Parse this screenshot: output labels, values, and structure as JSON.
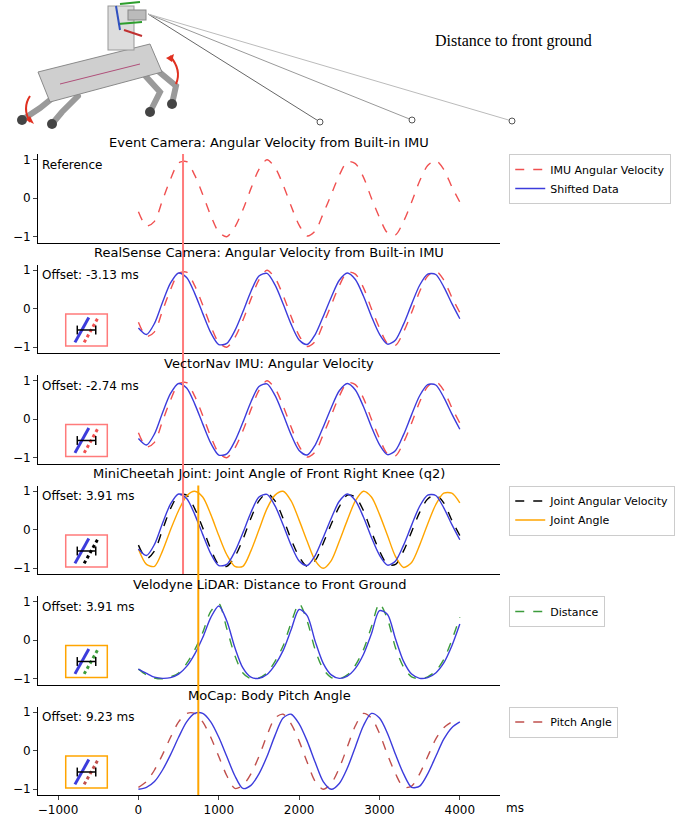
{
  "figure_label": "Distance to front ground",
  "vertical_lines": [
    {
      "x": 555,
      "color": "#ff7b7b",
      "panels": [
        0,
        1,
        2,
        3
      ]
    },
    {
      "x": 745,
      "color": "#ffa500",
      "panels": [
        3,
        4,
        5
      ]
    }
  ],
  "chart_data": [
    {
      "type": "line",
      "title": "Event Camera: Angular Velocity from Built-in IMU",
      "annotation": "Reference",
      "legend": "right",
      "tick_labels": "y",
      "xlim": [
        -1250,
        4500
      ],
      "ylim": [
        -1.15,
        1.15
      ],
      "yticks": [
        {
          "value": -1,
          "label": "−1"
        },
        0,
        1
      ],
      "x": [
        0,
        100,
        200,
        300,
        400,
        500,
        600,
        700,
        800,
        900,
        1000,
        1100,
        1200,
        1300,
        1400,
        1500,
        1600,
        1700,
        1800,
        1900,
        2000,
        2100,
        2200,
        2300,
        2400,
        2500,
        2600,
        2700,
        2800,
        2900,
        3000,
        3100,
        3200,
        3300,
        3400,
        3500,
        3600,
        3700,
        3800,
        3900,
        4000
      ],
      "series": [
        {
          "name": "IMU Angular Velocity",
          "color": "#f05050",
          "line_style": "dashed",
          "values": [
            -0.35,
            -0.72,
            -0.6,
            -0.05,
            0.5,
            0.92,
            0.95,
            0.6,
            0.1,
            -0.45,
            -0.88,
            -1.0,
            -0.75,
            -0.3,
            0.25,
            0.75,
            1.0,
            0.8,
            0.35,
            -0.2,
            -0.7,
            -0.98,
            -0.85,
            -0.4,
            0.1,
            0.6,
            0.95,
            0.9,
            0.55,
            0.0,
            -0.5,
            -0.9,
            -0.95,
            -0.6,
            -0.1,
            0.45,
            0.85,
            0.98,
            0.75,
            0.3,
            -0.1
          ]
        },
        {
          "name": "Shifted Data",
          "color": "#3c3cdc",
          "line_style": "solid",
          "values": [
            null,
            null,
            null,
            null,
            null,
            null,
            null,
            null,
            null,
            null,
            null,
            null,
            null,
            null,
            null,
            null,
            null,
            null,
            null,
            null,
            null,
            null,
            null,
            null,
            null,
            null,
            null,
            null,
            null,
            null,
            null,
            null,
            null,
            null,
            null,
            null,
            null,
            null,
            null,
            null,
            null
          ]
        }
      ]
    },
    {
      "type": "line",
      "title": "RealSense Camera: Angular Velocity from Built-in IMU",
      "annotation": "Offset: -3.13 ms",
      "tick_labels": "y",
      "xlim": [
        -1250,
        4500
      ],
      "ylim": [
        -1.15,
        1.15
      ],
      "yticks": [
        {
          "value": -1,
          "label": "−1"
        },
        0,
        1
      ],
      "x": [
        0,
        100,
        200,
        300,
        400,
        500,
        600,
        700,
        800,
        900,
        1000,
        1100,
        1200,
        1300,
        1400,
        1500,
        1600,
        1700,
        1800,
        1900,
        2000,
        2100,
        2200,
        2300,
        2400,
        2500,
        2600,
        2700,
        2800,
        2900,
        3000,
        3100,
        3200,
        3300,
        3400,
        3500,
        3600,
        3700,
        3800,
        3900,
        4000
      ],
      "series": [
        {
          "color": "#f05050",
          "line_style": "dashed",
          "values": [
            -0.35,
            -0.72,
            -0.6,
            -0.05,
            0.5,
            0.92,
            0.95,
            0.6,
            0.1,
            -0.45,
            -0.88,
            -1.0,
            -0.75,
            -0.3,
            0.25,
            0.75,
            1.0,
            0.8,
            0.35,
            -0.2,
            -0.7,
            -0.98,
            -0.85,
            -0.4,
            0.1,
            0.6,
            0.95,
            0.9,
            0.55,
            0.0,
            -0.5,
            -0.9,
            -0.95,
            -0.6,
            -0.1,
            0.45,
            0.85,
            0.98,
            0.75,
            0.3,
            -0.1
          ]
        },
        {
          "color": "#3c3cdc",
          "line_style": "solid",
          "values": [
            -0.5,
            -0.67,
            -0.38,
            0.17,
            0.67,
            0.93,
            0.81,
            0.4,
            -0.12,
            -0.62,
            -0.93,
            -0.9,
            -0.57,
            -0.08,
            0.45,
            0.85,
            0.92,
            0.62,
            0.13,
            -0.4,
            -0.81,
            -0.93,
            -0.67,
            -0.2,
            0.3,
            0.74,
            0.93,
            0.76,
            0.33,
            -0.2,
            -0.66,
            -0.92,
            -0.81,
            -0.4,
            0.12,
            0.61,
            0.9,
            0.89,
            0.57,
            0.14,
            -0.26
          ]
        }
      ]
    },
    {
      "type": "line",
      "title": "VectorNav IMU: Angular Velocity",
      "annotation": "Offset: -2.74 ms",
      "tick_labels": "y",
      "xlim": [
        -1250,
        4500
      ],
      "ylim": [
        -1.15,
        1.15
      ],
      "yticks": [
        {
          "value": -1,
          "label": "−1"
        },
        0,
        1
      ],
      "x": [
        0,
        100,
        200,
        300,
        400,
        500,
        600,
        700,
        800,
        900,
        1000,
        1100,
        1200,
        1300,
        1400,
        1500,
        1600,
        1700,
        1800,
        1900,
        2000,
        2100,
        2200,
        2300,
        2400,
        2500,
        2600,
        2700,
        2800,
        2900,
        3000,
        3100,
        3200,
        3300,
        3400,
        3500,
        3600,
        3700,
        3800,
        3900,
        4000
      ],
      "series": [
        {
          "color": "#f05050",
          "line_style": "dashed",
          "values": [
            -0.35,
            -0.72,
            -0.6,
            -0.05,
            0.5,
            0.92,
            0.95,
            0.6,
            0.1,
            -0.45,
            -0.88,
            -1.0,
            -0.75,
            -0.3,
            0.25,
            0.75,
            1.0,
            0.8,
            0.35,
            -0.2,
            -0.7,
            -0.98,
            -0.85,
            -0.4,
            0.1,
            0.6,
            0.95,
            0.9,
            0.55,
            0.0,
            -0.5,
            -0.9,
            -0.95,
            -0.6,
            -0.1,
            0.45,
            0.85,
            0.98,
            0.75,
            0.3,
            -0.1
          ]
        },
        {
          "color": "#3c3cdc",
          "line_style": "solid",
          "values": [
            -0.5,
            -0.67,
            -0.38,
            0.17,
            0.67,
            0.93,
            0.81,
            0.4,
            -0.12,
            -0.62,
            -0.93,
            -0.9,
            -0.57,
            -0.08,
            0.45,
            0.85,
            0.92,
            0.62,
            0.13,
            -0.4,
            -0.81,
            -0.93,
            -0.67,
            -0.2,
            0.3,
            0.74,
            0.93,
            0.76,
            0.33,
            -0.2,
            -0.66,
            -0.92,
            -0.81,
            -0.4,
            0.12,
            0.61,
            0.9,
            0.89,
            0.57,
            0.14,
            -0.26
          ]
        }
      ]
    },
    {
      "type": "line",
      "title": "MiniCheetah Joint: Joint Angle of Front Right Knee (q2)",
      "annotation": "Offset: 3.91 ms",
      "legend": "right",
      "tick_labels": "y",
      "xlim": [
        -1250,
        4500
      ],
      "ylim": [
        -1.15,
        1.15
      ],
      "yticks": [
        {
          "value": -1,
          "label": "−1"
        },
        0,
        1
      ],
      "x": [
        0,
        100,
        200,
        300,
        400,
        500,
        600,
        700,
        800,
        900,
        1000,
        1100,
        1200,
        1300,
        1400,
        1500,
        1600,
        1700,
        1800,
        1900,
        2000,
        2100,
        2200,
        2300,
        2400,
        2500,
        2600,
        2700,
        2800,
        2900,
        3000,
        3100,
        3200,
        3300,
        3400,
        3500,
        3600,
        3700,
        3800,
        3900,
        4000
      ],
      "series": [
        {
          "name": "Joint Angular Velocity",
          "color": "#000000",
          "line_style": "dashed",
          "values": [
            -0.4,
            -0.75,
            -0.55,
            0.0,
            0.55,
            0.9,
            0.9,
            0.55,
            0.05,
            -0.5,
            -0.9,
            -0.95,
            -0.7,
            -0.25,
            0.3,
            0.75,
            0.95,
            0.75,
            0.3,
            -0.25,
            -0.7,
            -0.95,
            -0.8,
            -0.35,
            0.15,
            0.6,
            0.9,
            0.85,
            0.5,
            -0.05,
            -0.55,
            -0.9,
            -0.9,
            -0.55,
            -0.05,
            0.45,
            0.8,
            0.9,
            0.7,
            0.25,
            -0.15
          ]
        },
        {
          "name": "Joint Angle",
          "color": "#ffa500",
          "line_style": "solid",
          "values": [
            -0.5,
            -0.9,
            -0.95,
            -0.55,
            0.0,
            0.5,
            0.88,
            1.0,
            0.85,
            0.4,
            -0.15,
            -0.65,
            -0.95,
            -0.95,
            -0.55,
            0.0,
            0.55,
            0.9,
            1.0,
            0.75,
            0.25,
            -0.3,
            -0.8,
            -1.0,
            -0.8,
            -0.3,
            0.25,
            0.75,
            1.0,
            0.85,
            0.4,
            -0.15,
            -0.7,
            -0.98,
            -0.85,
            -0.4,
            0.15,
            0.65,
            0.95,
            0.95,
            0.7
          ]
        },
        {
          "color": "#3c3cdc",
          "line_style": "solid",
          "values": [
            -0.5,
            -0.67,
            -0.38,
            0.17,
            0.67,
            0.93,
            0.81,
            0.4,
            -0.12,
            -0.62,
            -0.93,
            -0.9,
            -0.57,
            -0.08,
            0.45,
            0.85,
            0.92,
            0.62,
            0.13,
            -0.4,
            -0.81,
            -0.93,
            -0.67,
            -0.2,
            0.3,
            0.74,
            0.93,
            0.76,
            0.33,
            -0.2,
            -0.66,
            -0.92,
            -0.81,
            -0.4,
            0.12,
            0.61,
            0.9,
            0.89,
            0.57,
            0.14,
            -0.26
          ]
        }
      ]
    },
    {
      "type": "line",
      "title": "Velodyne LiDAR: Distance to Front Ground",
      "annotation": "Offset: 3.91 ms",
      "legend": "right",
      "tick_labels": "y",
      "xlim": [
        -1250,
        4500
      ],
      "ylim": [
        -1.15,
        1.15
      ],
      "yticks": [
        {
          "value": -1,
          "label": "−1"
        },
        0,
        1
      ],
      "x": [
        0,
        100,
        200,
        300,
        400,
        500,
        600,
        700,
        800,
        900,
        1000,
        1100,
        1200,
        1300,
        1400,
        1500,
        1600,
        1700,
        1800,
        1900,
        2000,
        2100,
        2200,
        2300,
        2400,
        2500,
        2600,
        2700,
        2800,
        2900,
        3000,
        3100,
        3200,
        3300,
        3400,
        3500,
        3600,
        3700,
        3800,
        3900,
        4000
      ],
      "series": [
        {
          "name": "Distance",
          "color": "#3c9c3c",
          "line_style": "dashed",
          "values": [
            -0.75,
            -0.9,
            -0.98,
            -1.0,
            -0.95,
            -0.85,
            -0.6,
            -0.25,
            0.2,
            0.75,
            0.95,
            0.3,
            -0.4,
            -0.85,
            -1.0,
            -0.98,
            -0.85,
            -0.55,
            -0.15,
            0.45,
            0.95,
            0.5,
            -0.25,
            -0.75,
            -0.97,
            -1.0,
            -0.9,
            -0.65,
            -0.25,
            0.35,
            0.95,
            0.55,
            -0.2,
            -0.7,
            -0.95,
            -1.0,
            -0.95,
            -0.8,
            -0.5,
            0.0,
            0.6
          ]
        },
        {
          "color": "#3c3cdc",
          "line_style": "solid",
          "values": [
            -0.75,
            -0.86,
            -0.96,
            -0.99,
            -0.97,
            -0.88,
            -0.68,
            -0.36,
            0.07,
            0.59,
            0.89,
            0.5,
            -0.19,
            -0.72,
            -0.96,
            -0.99,
            -0.89,
            -0.64,
            -0.27,
            0.27,
            0.8,
            0.64,
            -0.03,
            -0.6,
            -0.9,
            -0.99,
            -0.93,
            -0.73,
            -0.37,
            0.17,
            0.77,
            0.67,
            0.03,
            -0.55,
            -0.88,
            -0.99,
            -0.97,
            -0.85,
            -0.59,
            -0.15,
            0.42
          ]
        }
      ]
    },
    {
      "type": "line",
      "title": "MoCap: Body Pitch Angle",
      "annotation": "Offset: 9.23 ms",
      "legend": "right",
      "x_label": "ms",
      "xlim": [
        -1250,
        4500
      ],
      "xticks": [
        {
          "value": -1000,
          "label": "−1000"
        },
        0,
        1000,
        2000,
        3000,
        4000
      ],
      "ylim": [
        -1.15,
        1.15
      ],
      "yticks": [
        {
          "value": -1,
          "label": "−1"
        },
        0,
        1
      ],
      "x": [
        0,
        100,
        200,
        300,
        400,
        500,
        600,
        700,
        800,
        900,
        1000,
        1100,
        1200,
        1300,
        1400,
        1500,
        1600,
        1700,
        1800,
        1900,
        2000,
        2100,
        2200,
        2300,
        2400,
        2500,
        2600,
        2700,
        2800,
        2900,
        3000,
        3100,
        3200,
        3300,
        3400,
        3500,
        3600,
        3700,
        3800,
        3900,
        4000
      ],
      "series": [
        {
          "name": "Pitch Angle",
          "color": "#c0504d",
          "line_style": "dashed",
          "values": [
            -0.95,
            -0.8,
            -0.5,
            -0.1,
            0.35,
            0.75,
            0.97,
            0.97,
            0.75,
            0.35,
            -0.15,
            -0.65,
            -0.98,
            -0.9,
            -0.6,
            -0.15,
            0.4,
            0.85,
            0.95,
            0.7,
            0.25,
            -0.3,
            -0.8,
            -1.0,
            -0.85,
            -0.45,
            0.1,
            0.65,
            0.97,
            0.85,
            0.45,
            -0.1,
            -0.6,
            -0.95,
            -0.92,
            -0.6,
            -0.15,
            0.3,
            0.6,
            0.75,
            null
          ]
        },
        {
          "color": "#3c3cdc",
          "line_style": "solid",
          "values": [
            -1.0,
            -0.95,
            -0.8,
            -0.5,
            -0.1,
            0.35,
            0.75,
            0.97,
            0.97,
            0.75,
            0.35,
            -0.15,
            -0.65,
            -0.98,
            -0.9,
            -0.6,
            -0.15,
            0.4,
            0.85,
            0.95,
            0.7,
            0.25,
            -0.3,
            -0.8,
            -1.0,
            -0.85,
            -0.45,
            0.1,
            0.65,
            0.97,
            0.85,
            0.45,
            -0.1,
            -0.6,
            -0.95,
            -0.92,
            -0.6,
            -0.15,
            0.3,
            0.6,
            0.75
          ]
        }
      ]
    }
  ]
}
